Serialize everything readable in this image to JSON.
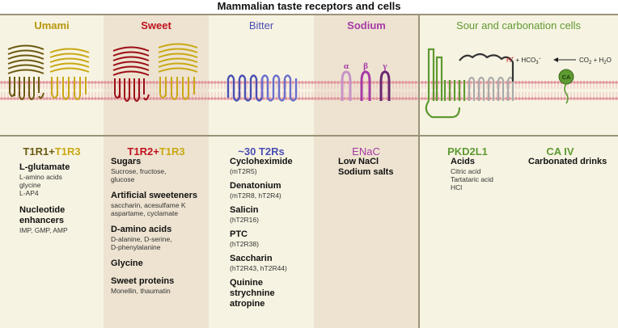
{
  "title": "Mammalian taste receptors and cells",
  "colors": {
    "umami": "#b7960b",
    "sweet": "#c0131f",
    "bitter": "#4a4fb3",
    "sodium": "#a63aa6",
    "sour": "#5e9a32",
    "text": "#222222"
  },
  "headers": {
    "umami": "Umami",
    "sweet": "Sweet",
    "bitter": "Bitter",
    "sodium": "Sodium",
    "sour": "Sour and carbonation cells"
  },
  "diagram": {
    "enac_alpha": "α",
    "enac_beta": "β",
    "enac_gamma": "γ",
    "hplus": "H",
    "hplus_sup": "+",
    "hco3_prefix": " + HCO",
    "hco3_sub": "3",
    "hco3_sup": "−",
    "co2_text": "CO",
    "co2_sub": "2",
    "plus_h2o": " + H",
    "h2o_sub": "2",
    "h2o_o": "O",
    "ca_label": "CA"
  },
  "umami": {
    "receptor_a": "T1R1",
    "receptor_plus": "+",
    "receptor_b": "T1R3",
    "items": [
      {
        "head": "L-glutamate",
        "sub": [
          "L-amino acids",
          "glycine",
          "L-AP4"
        ]
      },
      {
        "head": "Nucleotide enhancers",
        "sub": [
          "IMP, GMP, AMP"
        ]
      }
    ]
  },
  "sweet": {
    "receptor_a": "T1R2",
    "receptor_plus": "+",
    "receptor_b": "T1R3",
    "items": [
      {
        "head": "Sugars",
        "sub": [
          "Sucrose, fructose,",
          "glucose"
        ]
      },
      {
        "head": "Artificial sweeteners",
        "sub": [
          "saccharin, acesulfame K",
          "aspartame, cyclamate"
        ]
      },
      {
        "head": "D-amino acids",
        "sub": [
          "D-alanine, D-serine,",
          "D-phenylalanine"
        ]
      },
      {
        "head": "Glycine",
        "sub": []
      },
      {
        "head": "Sweet proteins",
        "sub": [
          "Monellin, thaumatin"
        ]
      }
    ]
  },
  "bitter": {
    "receptor": "~30 T2Rs",
    "items": [
      {
        "head": "Cycloheximide",
        "sub": [
          "(mT2R5)"
        ]
      },
      {
        "head": "Denatonium",
        "sub": [
          "(mT2R8, hT2R4)"
        ]
      },
      {
        "head": "Salicin",
        "sub": [
          "(hT2R16)"
        ]
      },
      {
        "head": "PTC",
        "sub": [
          "(hT2R38)"
        ]
      },
      {
        "head": "Saccharin",
        "sub": [
          "(hT2R43, hT2R44)"
        ]
      },
      {
        "head": "Quinine",
        "sub": []
      },
      {
        "head": "strychnine",
        "sub": []
      },
      {
        "head": "atropine",
        "sub": []
      }
    ]
  },
  "sodium": {
    "receptor": "ENaC",
    "items": [
      {
        "head": "Low NaCl",
        "sub": []
      },
      {
        "head": "Sodium salts",
        "sub": []
      }
    ]
  },
  "sour": {
    "receptor": "PKD2L1",
    "items": [
      {
        "head": "Acids",
        "sub": [
          "Citric acid",
          "Tartataric acid",
          "HCl"
        ]
      }
    ]
  },
  "carbonation": {
    "receptor": "CA IV",
    "items": [
      {
        "head": "Carbonated drinks",
        "sub": []
      }
    ]
  }
}
